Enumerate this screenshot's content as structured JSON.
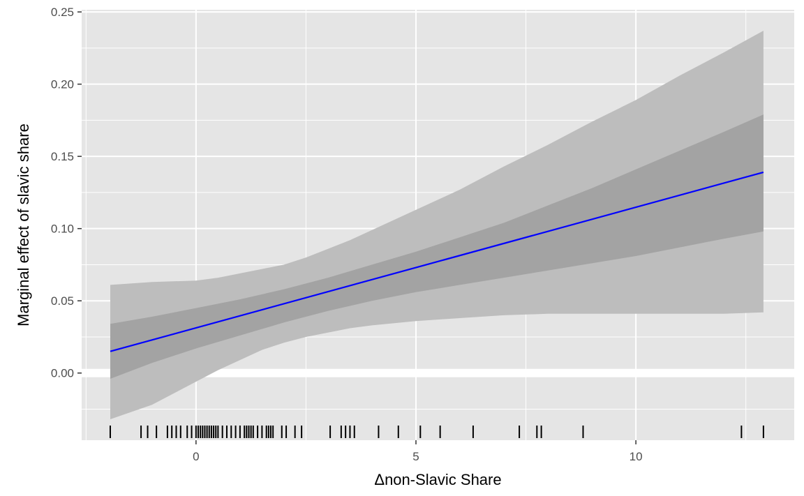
{
  "chart_data": {
    "type": "line",
    "title": "",
    "xlabel": "Δnon-Slavic Share",
    "ylabel": "Marginal effect of slavic share",
    "xlim": [
      -2.6,
      13.6
    ],
    "ylim": [
      -0.0465,
      0.2515
    ],
    "x_ticks": [
      0,
      5,
      10
    ],
    "x_tick_labels": [
      "0",
      "5",
      "10"
    ],
    "y_ticks": [
      0.0,
      0.05,
      0.1,
      0.15,
      0.2,
      0.25
    ],
    "y_tick_labels": [
      "0.00",
      "0.05",
      "0.10",
      "0.15",
      "0.20",
      "0.25"
    ],
    "grid": true,
    "reference_line_y": 0,
    "colors": {
      "panel": "#e5e5e5",
      "gridline": "#ffffff",
      "line": "#0000ff",
      "band_outer": "#bdbdbd",
      "band_inner": "#a3a3a3",
      "rug": "#000000"
    },
    "series": [
      {
        "type": "line",
        "x": [
          -1.95,
          12.9
        ],
        "y": [
          0.015,
          0.139
        ]
      }
    ],
    "bands": [
      {
        "level": "outer",
        "x": [
          -1.95,
          -1.0,
          0.0,
          0.5,
          1.0,
          1.5,
          2.0,
          2.5,
          3.0,
          3.5,
          4.0,
          5.0,
          6.0,
          7.0,
          8.0,
          9.0,
          10.0,
          11.0,
          12.0,
          12.9
        ],
        "lower": [
          -0.032,
          -0.022,
          -0.006,
          0.002,
          0.009,
          0.016,
          0.021,
          0.025,
          0.028,
          0.031,
          0.033,
          0.036,
          0.038,
          0.04,
          0.041,
          0.041,
          0.041,
          0.041,
          0.041,
          0.042
        ],
        "upper": [
          0.061,
          0.063,
          0.064,
          0.066,
          0.069,
          0.072,
          0.075,
          0.08,
          0.086,
          0.092,
          0.099,
          0.113,
          0.127,
          0.143,
          0.158,
          0.174,
          0.189,
          0.206,
          0.222,
          0.237
        ]
      },
      {
        "level": "inner",
        "x": [
          -1.95,
          -1.0,
          0.0,
          1.0,
          2.0,
          3.0,
          4.0,
          5.0,
          6.0,
          7.0,
          8.0,
          9.0,
          10.0,
          11.0,
          12.0,
          12.9
        ],
        "lower": [
          -0.004,
          0.007,
          0.017,
          0.026,
          0.035,
          0.043,
          0.05,
          0.056,
          0.061,
          0.066,
          0.071,
          0.076,
          0.081,
          0.087,
          0.093,
          0.098
        ],
        "upper": [
          0.034,
          0.039,
          0.045,
          0.051,
          0.058,
          0.066,
          0.075,
          0.084,
          0.094,
          0.104,
          0.116,
          0.128,
          0.141,
          0.154,
          0.167,
          0.179
        ]
      }
    ],
    "rug_x": [
      -1.95,
      -1.25,
      -1.1,
      -0.9,
      -0.65,
      -0.55,
      -0.45,
      -0.35,
      -0.2,
      -0.1,
      0.0,
      0.05,
      0.1,
      0.15,
      0.2,
      0.25,
      0.3,
      0.35,
      0.4,
      0.45,
      0.5,
      0.6,
      0.7,
      0.8,
      0.9,
      1.0,
      1.1,
      1.15,
      1.2,
      1.25,
      1.3,
      1.4,
      1.5,
      1.6,
      1.65,
      1.7,
      1.75,
      1.95,
      2.05,
      2.25,
      2.4,
      3.05,
      3.3,
      3.4,
      3.5,
      3.6,
      4.15,
      4.6,
      5.1,
      5.55,
      6.3,
      7.35,
      7.75,
      7.85,
      8.8,
      12.4,
      12.9
    ]
  }
}
